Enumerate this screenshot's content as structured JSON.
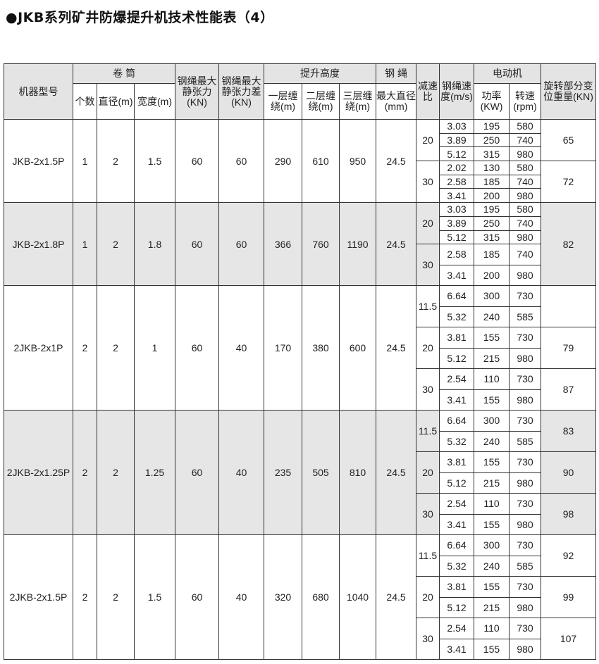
{
  "title": "●JKB系列矿井防爆提升机技术性能表（4）",
  "headers": {
    "model": "机器型号",
    "drum": "卷 筒",
    "count": "个数",
    "diameter": "直径(m)",
    "width": "宽度(m)",
    "tension": "钢绳最大静张力(KN)",
    "tension_diff": "钢绳最大静张力差(KN)",
    "lift_height": "提升高度",
    "layer1": "一层缠绕(m)",
    "layer2": "二层缠绕(m)",
    "layer3": "三层缠绕(m)",
    "rope": "钢 绳",
    "rope_dia": "最大直径(mm)",
    "ratio": "减速比",
    "speed": "钢绳速度(m/s)",
    "motor": "电动机",
    "power": "功率(KW)",
    "rpm": "转速(rpm)",
    "weight": "旋转部分变位重量(KN)"
  },
  "groups": [
    {
      "model": "JKB-2x1.5P",
      "count": "1",
      "diameter": "2",
      "width": "1.5",
      "tension": "60",
      "tension_diff": "60",
      "h1": "290",
      "h2": "610",
      "h3": "950",
      "rope_dia": "24.5",
      "shaded": false,
      "ratios": [
        {
          "ratio": "20",
          "motors": [
            [
              "3.03",
              "195",
              "580"
            ],
            [
              "3.89",
              "250",
              "740"
            ],
            [
              "5.12",
              "315",
              "980"
            ]
          ]
        },
        {
          "ratio": "30",
          "motors": [
            [
              "2.02",
              "130",
              "580"
            ],
            [
              "2.58",
              "185",
              "740"
            ],
            [
              "3.41",
              "200",
              "980"
            ]
          ]
        }
      ],
      "weights": [
        {
          "value": "65",
          "rows": 3
        },
        {
          "value": "72",
          "rows": 3
        }
      ]
    },
    {
      "model": "JKB-2x1.8P",
      "count": "1",
      "diameter": "2",
      "width": "1.8",
      "tension": "60",
      "tension_diff": "60",
      "h1": "366",
      "h2": "760",
      "h3": "1190",
      "rope_dia": "24.5",
      "shaded": true,
      "ratios": [
        {
          "ratio": "20",
          "motors": [
            [
              "3.03",
              "195",
              "580"
            ],
            [
              "3.89",
              "250",
              "740"
            ],
            [
              "5.12",
              "315",
              "980"
            ]
          ]
        },
        {
          "ratio": "30",
          "motors": [
            [
              "2.58",
              "185",
              "740"
            ],
            [
              "3.41",
              "200",
              "980"
            ]
          ]
        }
      ],
      "weights": [
        {
          "value": "82",
          "rows": 5
        }
      ]
    },
    {
      "model": "2JKB-2x1P",
      "count": "2",
      "diameter": "2",
      "width": "1",
      "tension": "60",
      "tension_diff": "40",
      "h1": "170",
      "h2": "380",
      "h3": "600",
      "rope_dia": "24.5",
      "shaded": false,
      "ratios": [
        {
          "ratio": "11.5",
          "motors": [
            [
              "6.64",
              "300",
              "730"
            ],
            [
              "5.32",
              "240",
              "585"
            ]
          ]
        },
        {
          "ratio": "20",
          "motors": [
            [
              "3.81",
              "155",
              "730"
            ],
            [
              "5.12",
              "215",
              "980"
            ]
          ]
        },
        {
          "ratio": "30",
          "motors": [
            [
              "2.54",
              "110",
              "730"
            ],
            [
              "3.41",
              "155",
              "980"
            ]
          ]
        }
      ],
      "weights": [
        {
          "value": "",
          "rows": 2
        },
        {
          "value": "79",
          "rows": 2
        },
        {
          "value": "87",
          "rows": 2
        }
      ]
    },
    {
      "model": "2JKB-2x1.25P",
      "count": "2",
      "diameter": "2",
      "width": "1.25",
      "tension": "60",
      "tension_diff": "40",
      "h1": "235",
      "h2": "505",
      "h3": "810",
      "rope_dia": "24.5",
      "shaded": true,
      "ratios": [
        {
          "ratio": "11.5",
          "motors": [
            [
              "6.64",
              "300",
              "730"
            ],
            [
              "5.32",
              "240",
              "585"
            ]
          ]
        },
        {
          "ratio": "20",
          "motors": [
            [
              "3.81",
              "155",
              "730"
            ],
            [
              "5.12",
              "215",
              "980"
            ]
          ]
        },
        {
          "ratio": "30",
          "motors": [
            [
              "2.54",
              "110",
              "730"
            ],
            [
              "3.41",
              "155",
              "980"
            ]
          ]
        }
      ],
      "weights": [
        {
          "value": "83",
          "rows": 2
        },
        {
          "value": "90",
          "rows": 2
        },
        {
          "value": "98",
          "rows": 2
        }
      ]
    },
    {
      "model": "2JKB-2x1.5P",
      "count": "2",
      "diameter": "2",
      "width": "1.5",
      "tension": "60",
      "tension_diff": "40",
      "h1": "320",
      "h2": "680",
      "h3": "1040",
      "rope_dia": "24.5",
      "shaded": false,
      "ratios": [
        {
          "ratio": "11.5",
          "motors": [
            [
              "6.64",
              "300",
              "730"
            ],
            [
              "5.32",
              "240",
              "585"
            ]
          ]
        },
        {
          "ratio": "20",
          "motors": [
            [
              "3.81",
              "155",
              "730"
            ],
            [
              "5.12",
              "215",
              "980"
            ]
          ]
        },
        {
          "ratio": "30",
          "motors": [
            [
              "2.54",
              "110",
              "730"
            ],
            [
              "3.41",
              "155",
              "980"
            ]
          ]
        }
      ],
      "weights": [
        {
          "value": "92",
          "rows": 2
        },
        {
          "value": "99",
          "rows": 2
        },
        {
          "value": "107",
          "rows": 2
        }
      ]
    }
  ]
}
